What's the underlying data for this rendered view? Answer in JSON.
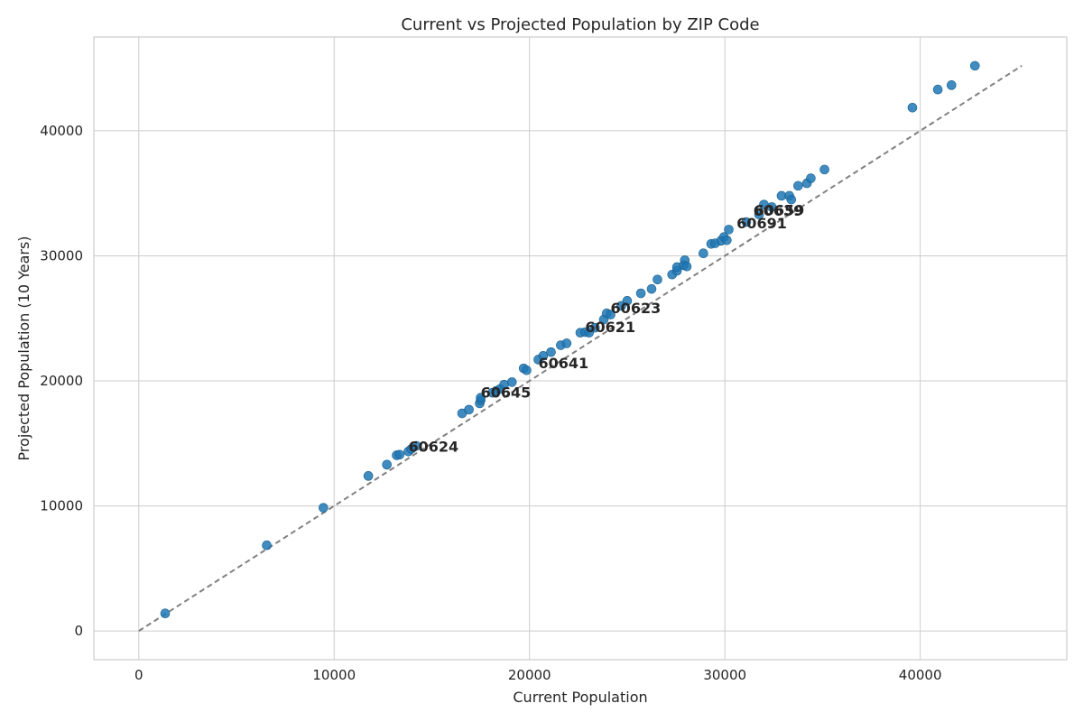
{
  "chart_data": {
    "type": "scatter",
    "title": "Current vs Projected Population by ZIP Code",
    "xlabel": "Current Population",
    "ylabel": "Projected Population (10 Years)",
    "xlim": [
      -2300,
      47500
    ],
    "ylim": [
      -2300,
      47500
    ],
    "xticks": [
      0,
      10000,
      20000,
      30000,
      40000
    ],
    "yticks": [
      0,
      10000,
      20000,
      30000,
      40000
    ],
    "grid": true,
    "point_color": "#1f77b4",
    "reference_line": {
      "from": [
        0,
        0
      ],
      "to": [
        45200,
        45200
      ],
      "style": "dashed",
      "color": "#808080"
    },
    "points": [
      [
        1350,
        1400
      ],
      [
        6550,
        6850
      ],
      [
        9450,
        9850
      ],
      [
        11750,
        12400
      ],
      [
        12700,
        13300
      ],
      [
        13200,
        14050
      ],
      [
        13350,
        14100
      ],
      [
        13800,
        14350
      ],
      [
        13950,
        14550
      ],
      [
        14200,
        14800
      ],
      [
        16550,
        17400
      ],
      [
        16900,
        17700
      ],
      [
        17450,
        18200
      ],
      [
        17500,
        18450
      ],
      [
        17500,
        18650
      ],
      [
        18100,
        19050
      ],
      [
        18300,
        19200
      ],
      [
        18500,
        19350
      ],
      [
        18700,
        19700
      ],
      [
        19100,
        19900
      ],
      [
        19700,
        21000
      ],
      [
        19850,
        20850
      ],
      [
        20450,
        21700
      ],
      [
        20700,
        22000
      ],
      [
        21100,
        22300
      ],
      [
        21600,
        22850
      ],
      [
        21900,
        23000
      ],
      [
        22600,
        23850
      ],
      [
        22850,
        23900
      ],
      [
        23050,
        23850
      ],
      [
        23350,
        24250
      ],
      [
        23800,
        24900
      ],
      [
        23950,
        25400
      ],
      [
        24150,
        25300
      ],
      [
        24700,
        26000
      ],
      [
        25000,
        26400
      ],
      [
        25700,
        27000
      ],
      [
        26250,
        27350
      ],
      [
        26550,
        28100
      ],
      [
        27300,
        28500
      ],
      [
        27550,
        28800
      ],
      [
        27550,
        29100
      ],
      [
        27900,
        29250
      ],
      [
        27950,
        29650
      ],
      [
        28050,
        29150
      ],
      [
        28900,
        30200
      ],
      [
        29300,
        30950
      ],
      [
        29500,
        31000
      ],
      [
        29800,
        31200
      ],
      [
        29950,
        31500
      ],
      [
        30100,
        31250
      ],
      [
        30200,
        32100
      ],
      [
        31100,
        32700
      ],
      [
        31750,
        33300
      ],
      [
        32000,
        34100
      ],
      [
        32400,
        33900
      ],
      [
        32900,
        34800
      ],
      [
        33300,
        34800
      ],
      [
        33400,
        34500
      ],
      [
        33750,
        35600
      ],
      [
        34200,
        35800
      ],
      [
        34400,
        36200
      ],
      [
        35100,
        36900
      ],
      [
        39600,
        41850
      ],
      [
        40900,
        43300
      ],
      [
        41600,
        43650
      ],
      [
        42800,
        45200
      ]
    ],
    "annotations": [
      {
        "text": "60624",
        "x": 13800,
        "y": 14350
      },
      {
        "text": "60645",
        "x": 17500,
        "y": 18650
      },
      {
        "text": "60641",
        "x": 20450,
        "y": 21000
      },
      {
        "text": "60621",
        "x": 22850,
        "y": 23900
      },
      {
        "text": "60623",
        "x": 24150,
        "y": 25400
      },
      {
        "text": "60691",
        "x": 30600,
        "y": 32200
      },
      {
        "text": "60639",
        "x": 31450,
        "y": 33200
      },
      {
        "text": "60659",
        "x": 31500,
        "y": 33250
      }
    ]
  }
}
